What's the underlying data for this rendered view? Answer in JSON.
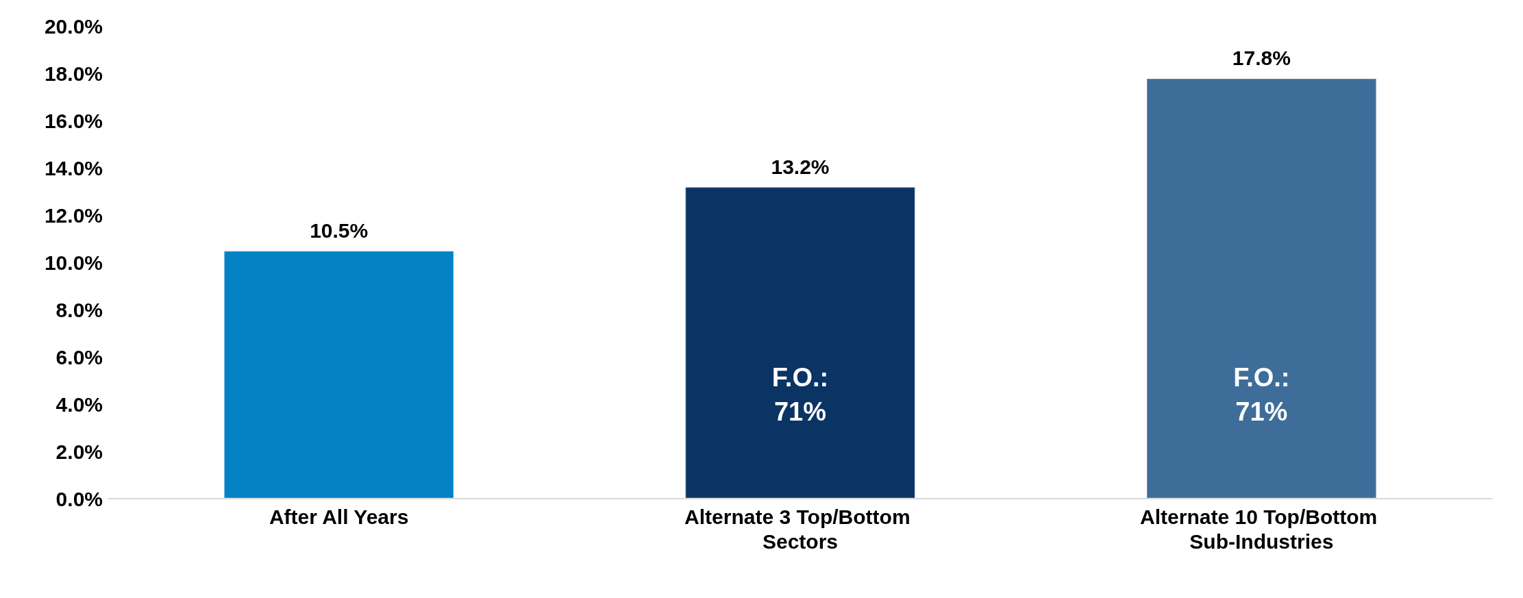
{
  "chart_data": {
    "type": "bar",
    "categories": [
      "After All Years",
      "Alternate 3 Top/Bottom Sectors",
      "Alternate 10 Top/Bottom Sub-Industries"
    ],
    "values": [
      10.5,
      13.2,
      17.8
    ],
    "colors": [
      "#0382c4",
      "#0a3463",
      "#3e6d99"
    ],
    "value_labels": [
      "10.5%",
      "13.2%",
      "17.8%"
    ],
    "ylim": [
      0,
      20
    ],
    "yticks": [
      {
        "value": 0,
        "label": "0.0%"
      },
      {
        "value": 2,
        "label": "2.0%"
      },
      {
        "value": 4,
        "label": "4.0%"
      },
      {
        "value": 6,
        "label": "6.0%"
      },
      {
        "value": 8,
        "label": "8.0%"
      },
      {
        "value": 10,
        "label": "10.0%"
      },
      {
        "value": 12,
        "label": "12.0%"
      },
      {
        "value": 14,
        "label": "14.0%"
      },
      {
        "value": 16,
        "label": "16.0%"
      },
      {
        "value": 18,
        "label": "18.0%"
      },
      {
        "value": 20,
        "label": "20.0%"
      }
    ],
    "annotations": [
      "F.O.:\n71%",
      "F.O.:\n71%"
    ],
    "grid": false
  }
}
